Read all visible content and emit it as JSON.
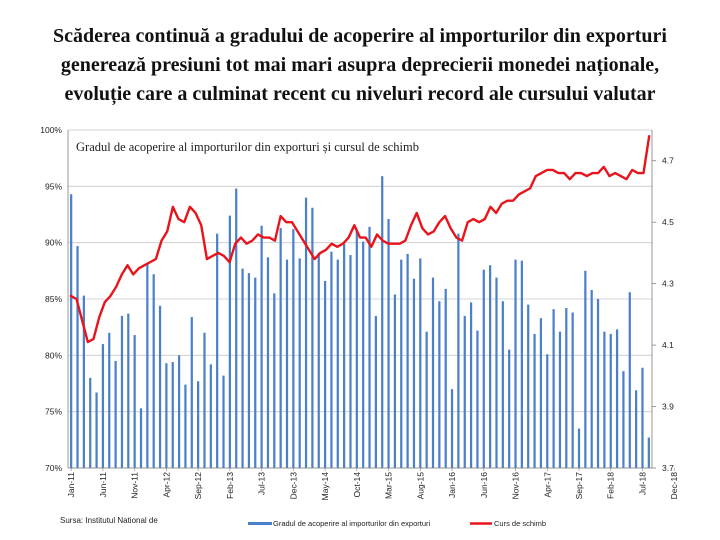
{
  "slide": {
    "title_lines": [
      "Scăderea continuă a gradului de acoperire al importurilor din exporturi",
      "generează presiuni tot mai mari asupra deprecierii monedei naționale,",
      "evoluție care a culminat recent cu niveluri record ale cursului valutar"
    ]
  },
  "chart_data": {
    "type": "bar+line",
    "title": "Gradul de acoperire al importurilor din exporturi și cursul de schimb",
    "source": "Sursa: Institutul National de",
    "left_axis": {
      "ylim": [
        70,
        100
      ],
      "ticks": [
        "70%",
        "75%",
        "80%",
        "85%",
        "90%",
        "95%",
        "100%"
      ]
    },
    "right_axis": {
      "ylim": [
        3.7,
        4.8
      ],
      "ticks": [
        "3.7",
        "3.9",
        "4.1",
        "4.3",
        "4.5",
        "4.7"
      ]
    },
    "x_labels": [
      "Jan-11",
      "Jun-11",
      "Nov-11",
      "Apr-12",
      "Sep-12",
      "Feb-13",
      "Jul-13",
      "Dec-13",
      "May-14",
      "Oct-14",
      "Mar-15",
      "Aug-15",
      "Jan-16",
      "Jun-16",
      "Nov-16",
      "Apr-17",
      "Sep-17",
      "Feb-18",
      "Jul-18",
      "Dec-18"
    ],
    "series": [
      {
        "name": "Gradul de acoperire al importurilor din exporturi",
        "type": "bar",
        "color": "#4a7fc9",
        "axis": "left",
        "values": [
          94.3,
          89.7,
          85.3,
          78.0,
          76.7,
          81.0,
          82.0,
          79.5,
          83.5,
          83.7,
          81.8,
          75.3,
          88.1,
          87.2,
          84.4,
          79.3,
          79.4,
          80.0,
          77.4,
          83.4,
          77.7,
          82.0,
          79.2,
          90.8,
          78.2,
          92.4,
          94.8,
          87.7,
          87.3,
          86.9,
          91.5,
          88.7,
          85.5,
          91.3,
          88.5,
          91.2,
          88.6,
          94.0,
          93.1,
          89.1,
          86.6,
          89.2,
          88.5,
          89.9,
          88.9,
          91.0,
          90.1,
          91.4,
          83.5,
          95.9,
          92.1,
          85.4,
          88.5,
          89.0,
          86.8,
          88.6,
          82.1,
          86.9,
          84.8,
          85.9,
          77.0,
          90.8,
          83.5,
          84.7,
          82.2,
          87.6,
          88.0,
          86.9,
          84.8,
          80.5,
          88.5,
          88.4,
          84.5,
          81.9,
          83.3,
          80.1,
          84.1,
          82.1,
          84.2,
          83.8,
          73.5,
          87.5,
          85.8,
          85.0,
          82.1,
          81.9,
          82.3,
          78.6,
          85.6,
          76.9,
          78.9,
          72.7
        ]
      },
      {
        "name": "Curs de schimb",
        "type": "line",
        "color": "#e8141c",
        "axis": "right",
        "values": [
          4.26,
          4.25,
          4.18,
          4.11,
          4.12,
          4.19,
          4.24,
          4.26,
          4.29,
          4.33,
          4.36,
          4.33,
          4.35,
          4.36,
          4.37,
          4.38,
          4.44,
          4.47,
          4.55,
          4.51,
          4.5,
          4.55,
          4.53,
          4.49,
          4.38,
          4.39,
          4.4,
          4.39,
          4.37,
          4.43,
          4.45,
          4.43,
          4.44,
          4.46,
          4.45,
          4.45,
          4.44,
          4.52,
          4.5,
          4.5,
          4.47,
          4.44,
          4.41,
          4.38,
          4.4,
          4.41,
          4.43,
          4.42,
          4.43,
          4.45,
          4.49,
          4.45,
          4.45,
          4.42,
          4.46,
          4.44,
          4.43,
          4.43,
          4.43,
          4.44,
          4.49,
          4.53,
          4.48,
          4.46,
          4.47,
          4.5,
          4.52,
          4.48,
          4.45,
          4.44,
          4.5,
          4.51,
          4.5,
          4.51,
          4.55,
          4.53,
          4.56,
          4.57,
          4.57,
          4.59,
          4.6,
          4.61,
          4.65,
          4.66,
          4.67,
          4.67,
          4.66,
          4.66,
          4.64,
          4.66,
          4.66,
          4.65,
          4.66,
          4.66,
          4.68,
          4.65,
          4.66,
          4.65,
          4.64,
          4.67,
          4.66,
          4.66,
          4.78
        ]
      }
    ],
    "legend": [
      "Gradul de acoperire al importurilor din exporturi",
      "Curs de schimb"
    ],
    "legend_position": "bottom"
  }
}
